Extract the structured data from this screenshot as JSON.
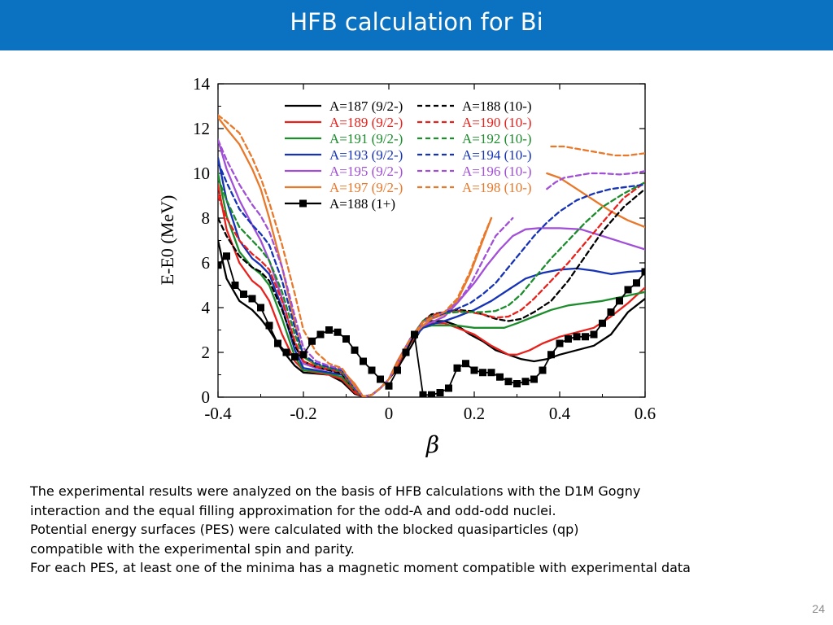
{
  "slide": {
    "title": "HFB calculation for Bi",
    "page_number": "24",
    "colors": {
      "title_bar": "#0b72c1"
    },
    "body_lines": [
      "The experimental results were analyzed on the basis of HFB calculations with the D1M Gogny",
      "interaction and the equal filling approximation for the odd-A and odd-odd nuclei.",
      "Potential energy surfaces (PES) were calculated with the blocked quasiparticles (qp)",
      "compatible with the experimental spin and parity.",
      "For each PES, at least one of the minima has a magnetic moment compatible with experimental data"
    ]
  },
  "chart_data": {
    "type": "line",
    "xlabel": "β",
    "ylabel": "E-E0 (MeV)",
    "xlim": [
      -0.4,
      0.6
    ],
    "ylim": [
      0,
      14
    ],
    "x_ticks": [
      "-0.4",
      "-0.2",
      "0",
      "0.2",
      "0.4",
      "0.6"
    ],
    "y_ticks": [
      "0",
      "2",
      "4",
      "6",
      "8",
      "10",
      "12",
      "14"
    ],
    "legend_position": "top",
    "series": [
      {
        "name": "A=187 (9/2-)",
        "color": "#000000",
        "dash": "solid",
        "x": [
          -0.4,
          -0.38,
          -0.35,
          -0.32,
          -0.3,
          -0.28,
          -0.25,
          -0.22,
          -0.2,
          -0.17,
          -0.14,
          -0.11,
          -0.08,
          -0.06,
          -0.04,
          -0.02,
          0,
          0.02,
          0.05,
          0.08,
          0.1,
          0.13,
          0.16,
          0.19,
          0.22,
          0.25,
          0.28,
          0.31,
          0.34,
          0.37,
          0.4,
          0.44,
          0.48,
          0.52,
          0.56,
          0.6
        ],
        "y": [
          7,
          5.3,
          4.3,
          3.9,
          3.5,
          3,
          2.1,
          1.4,
          1.1,
          1.05,
          1,
          0.7,
          0.15,
          0.02,
          0.1,
          0.4,
          0.8,
          1.3,
          2.2,
          3.2,
          3.4,
          3.4,
          3.2,
          2.8,
          2.5,
          2.1,
          1.9,
          1.7,
          1.6,
          1.7,
          1.9,
          2.1,
          2.3,
          2.8,
          3.8,
          4.4
        ]
      },
      {
        "name": "A=189 (9/2-)",
        "color": "#e8211c",
        "dash": "solid",
        "x": [
          -0.4,
          -0.38,
          -0.35,
          -0.32,
          -0.3,
          -0.28,
          -0.25,
          -0.22,
          -0.2,
          -0.17,
          -0.14,
          -0.11,
          -0.08,
          -0.06,
          -0.04,
          -0.02,
          0,
          0.02,
          0.05,
          0.08,
          0.1,
          0.13,
          0.16,
          0.2,
          0.24,
          0.28,
          0.3,
          0.33,
          0.36,
          0.4,
          0.44,
          0.48,
          0.52,
          0.56,
          0.6
        ],
        "y": [
          9.5,
          7.5,
          6,
          5.2,
          4.9,
          4.3,
          2.8,
          1.6,
          1.2,
          1.1,
          1,
          0.8,
          0.2,
          0.02,
          0.1,
          0.4,
          0.8,
          1.4,
          2.4,
          3.2,
          3.3,
          3.3,
          3.1,
          2.8,
          2.3,
          1.9,
          1.9,
          2.1,
          2.4,
          2.7,
          2.9,
          3.1,
          3.6,
          4.2,
          4.9
        ]
      },
      {
        "name": "A=191 (9/2-)",
        "color": "#1c8c2c",
        "dash": "solid",
        "x": [
          -0.4,
          -0.38,
          -0.35,
          -0.32,
          -0.3,
          -0.28,
          -0.25,
          -0.22,
          -0.2,
          -0.17,
          -0.14,
          -0.11,
          -0.08,
          -0.06,
          -0.04,
          -0.02,
          0,
          0.02,
          0.05,
          0.08,
          0.1,
          0.13,
          0.16,
          0.2,
          0.24,
          0.27,
          0.3,
          0.34,
          0.38,
          0.42,
          0.46,
          0.5,
          0.55,
          0.6
        ],
        "y": [
          10,
          8.1,
          6.5,
          5.8,
          5.5,
          5,
          3.5,
          1.8,
          1.2,
          1.15,
          1.05,
          0.9,
          0.3,
          0.02,
          0.1,
          0.4,
          0.8,
          1.5,
          2.5,
          3.1,
          3.2,
          3.2,
          3.2,
          3.1,
          3.1,
          3.1,
          3.3,
          3.6,
          3.9,
          4.1,
          4.2,
          4.3,
          4.5,
          4.7
        ]
      },
      {
        "name": "A=193 (9/2-)",
        "color": "#1633b5",
        "dash": "solid",
        "x": [
          -0.4,
          -0.38,
          -0.35,
          -0.32,
          -0.3,
          -0.28,
          -0.25,
          -0.22,
          -0.2,
          -0.17,
          -0.14,
          -0.11,
          -0.08,
          -0.06,
          -0.04,
          -0.02,
          0,
          0.02,
          0.05,
          0.08,
          0.1,
          0.13,
          0.16,
          0.2,
          0.24,
          0.28,
          0.32,
          0.36,
          0.4,
          0.44,
          0.48,
          0.52,
          0.56,
          0.6
        ],
        "y": [
          10.7,
          8.8,
          7,
          6.2,
          5.9,
          5.5,
          4,
          2.1,
          1.3,
          1.2,
          1.1,
          1,
          0.4,
          0.02,
          0.1,
          0.4,
          0.8,
          1.5,
          2.5,
          3.1,
          3.25,
          3.4,
          3.6,
          3.9,
          4.3,
          4.8,
          5.3,
          5.55,
          5.7,
          5.75,
          5.65,
          5.5,
          5.6,
          5.65
        ]
      },
      {
        "name": "A=195 (9/2-)",
        "color": "#a14fd6",
        "dash": "solid",
        "x": [
          -0.4,
          -0.38,
          -0.35,
          -0.32,
          -0.3,
          -0.28,
          -0.25,
          -0.22,
          -0.2,
          -0.17,
          -0.14,
          -0.11,
          -0.08,
          -0.06,
          -0.04,
          -0.02,
          0,
          0.02,
          0.05,
          0.08,
          0.1,
          0.13,
          0.16,
          0.2,
          0.23,
          0.26,
          0.29,
          0.32,
          0.35,
          0.4,
          0.45,
          0.5,
          0.55,
          0.6
        ],
        "y": [
          11.5,
          10.2,
          8.8,
          7.7,
          7,
          6.1,
          4.4,
          2.4,
          1.5,
          1.3,
          1.2,
          1.1,
          0.5,
          0.02,
          0.1,
          0.4,
          0.8,
          1.6,
          2.6,
          3.2,
          3.35,
          3.6,
          4.2,
          5.1,
          5.9,
          6.6,
          7.2,
          7.5,
          7.55,
          7.55,
          7.5,
          7.2,
          6.9,
          6.6
        ]
      },
      {
        "name": "A=197 (9/2-)",
        "color": "#e8782a",
        "dash": "solid",
        "x": [
          -0.4,
          -0.38,
          -0.35,
          -0.32,
          -0.3,
          -0.28,
          -0.25,
          -0.22,
          -0.2,
          -0.17,
          -0.14,
          -0.11,
          -0.08,
          -0.06,
          -0.04,
          -0.02,
          0,
          0.02,
          0.05,
          0.08,
          0.1,
          0.13,
          0.16,
          0.19,
          0.22,
          0.24
        ],
        "y": [
          12.5,
          12,
          11.3,
          10.2,
          9.3,
          8,
          5.8,
          3.3,
          1.8,
          1.4,
          1.3,
          1.2,
          0.6,
          0.02,
          0.1,
          0.4,
          0.8,
          1.6,
          2.6,
          3.2,
          3.5,
          3.7,
          4.3,
          5.5,
          7,
          8
        ]
      },
      {
        "name": "A=197 (9/2-)",
        "color": "#e8782a",
        "dash": "solid",
        "segment": "high-branch",
        "x": [
          0.37,
          0.4,
          0.44,
          0.48,
          0.52,
          0.56,
          0.6
        ],
        "y": [
          10,
          9.8,
          9.3,
          8.8,
          8.3,
          7.9,
          7.6
        ]
      },
      {
        "name": "A=188 (10-)",
        "color": "#000000",
        "dash": "dashed",
        "x": [
          -0.4,
          -0.38,
          -0.35,
          -0.32,
          -0.3,
          -0.28,
          -0.25,
          -0.22,
          -0.2,
          -0.17,
          -0.14,
          -0.11,
          -0.08,
          -0.06,
          -0.04,
          -0.02,
          0,
          0.02,
          0.05,
          0.08,
          0.1,
          0.13,
          0.16,
          0.19,
          0.22,
          0.25,
          0.28,
          0.31,
          0.34,
          0.38,
          0.42,
          0.46,
          0.5,
          0.55,
          0.6
        ],
        "y": [
          8,
          7.2,
          6.3,
          5.8,
          5.6,
          5.2,
          3.9,
          2.3,
          1.6,
          1.35,
          1.2,
          1.05,
          0.3,
          0.02,
          0.1,
          0.4,
          0.8,
          1.5,
          2.6,
          3.4,
          3.7,
          3.8,
          3.9,
          3.85,
          3.7,
          3.5,
          3.4,
          3.5,
          3.8,
          4.3,
          5.2,
          6.3,
          7.4,
          8.5,
          9.3
        ]
      },
      {
        "name": "A=190 (10-)",
        "color": "#e8211c",
        "dash": "dashed",
        "x": [
          -0.4,
          -0.38,
          -0.35,
          -0.32,
          -0.3,
          -0.28,
          -0.25,
          -0.22,
          -0.2,
          -0.17,
          -0.14,
          -0.11,
          -0.08,
          -0.06,
          -0.04,
          -0.02,
          0,
          0.02,
          0.05,
          0.08,
          0.1,
          0.13,
          0.16,
          0.19,
          0.22,
          0.25,
          0.28,
          0.31,
          0.34,
          0.38,
          0.42,
          0.46,
          0.5,
          0.55,
          0.6
        ],
        "y": [
          9,
          8,
          7,
          6.4,
          6.1,
          5.7,
          4.3,
          2.5,
          1.6,
          1.35,
          1.25,
          1.1,
          0.3,
          0.02,
          0.1,
          0.4,
          0.8,
          1.5,
          2.6,
          3.4,
          3.65,
          3.8,
          3.85,
          3.8,
          3.7,
          3.55,
          3.6,
          3.9,
          4.4,
          5.2,
          6,
          6.9,
          7.8,
          8.9,
          9.6
        ]
      },
      {
        "name": "A=192 (10-)",
        "color": "#1c8c2c",
        "dash": "dashed",
        "x": [
          -0.4,
          -0.38,
          -0.35,
          -0.32,
          -0.3,
          -0.28,
          -0.25,
          -0.22,
          -0.2,
          -0.17,
          -0.14,
          -0.11,
          -0.08,
          -0.06,
          -0.04,
          -0.02,
          0,
          0.02,
          0.05,
          0.08,
          0.1,
          0.13,
          0.16,
          0.19,
          0.22,
          0.25,
          0.28,
          0.31,
          0.34,
          0.38,
          0.42,
          0.46,
          0.5,
          0.55,
          0.6
        ],
        "y": [
          9.8,
          8.8,
          7.6,
          7,
          6.6,
          6.1,
          4.7,
          2.8,
          1.8,
          1.45,
          1.3,
          1.15,
          0.35,
          0.02,
          0.1,
          0.4,
          0.8,
          1.5,
          2.6,
          3.4,
          3.6,
          3.75,
          3.8,
          3.8,
          3.8,
          3.85,
          4.1,
          4.6,
          5.3,
          6.2,
          7,
          7.8,
          8.5,
          9.1,
          9.6
        ]
      },
      {
        "name": "A=194 (10-)",
        "color": "#1633b5",
        "dash": "dashed",
        "x": [
          -0.4,
          -0.38,
          -0.35,
          -0.32,
          -0.3,
          -0.28,
          -0.25,
          -0.22,
          -0.2,
          -0.17,
          -0.14,
          -0.11,
          -0.08,
          -0.06,
          -0.04,
          -0.02,
          0,
          0.02,
          0.05,
          0.08,
          0.1,
          0.13,
          0.16,
          0.19,
          0.22,
          0.25,
          0.28,
          0.31,
          0.34,
          0.37,
          0.4,
          0.44,
          0.48,
          0.52,
          0.56,
          0.6
        ],
        "y": [
          10.5,
          9.6,
          8.4,
          7.7,
          7.3,
          6.8,
          5.2,
          3.1,
          1.9,
          1.5,
          1.35,
          1.2,
          0.4,
          0.02,
          0.1,
          0.4,
          0.8,
          1.5,
          2.6,
          3.35,
          3.55,
          3.75,
          3.95,
          4.2,
          4.6,
          5.1,
          5.8,
          6.5,
          7.2,
          7.8,
          8.3,
          8.8,
          9.1,
          9.3,
          9.4,
          9.5
        ]
      },
      {
        "name": "A=196 (10-)",
        "color": "#a14fd6",
        "dash": "dashed",
        "x": [
          -0.4,
          -0.38,
          -0.35,
          -0.32,
          -0.3,
          -0.28,
          -0.25,
          -0.22,
          -0.2,
          -0.17,
          -0.14,
          -0.11,
          -0.08,
          -0.06,
          -0.04,
          -0.02,
          0,
          0.02,
          0.05,
          0.08,
          0.1,
          0.13,
          0.16,
          0.19,
          0.22,
          0.25,
          0.29
        ],
        "y": [
          11.5,
          10.6,
          9.5,
          8.6,
          8.1,
          7.4,
          5.8,
          3.6,
          2.2,
          1.6,
          1.4,
          1.25,
          0.45,
          0.02,
          0.1,
          0.4,
          0.8,
          1.5,
          2.6,
          3.35,
          3.55,
          3.8,
          4.2,
          5,
          6.1,
          7.2,
          8
        ]
      },
      {
        "name": "A=196 (10-)",
        "color": "#a14fd6",
        "dash": "dashed",
        "segment": "high-branch",
        "x": [
          0.37,
          0.39,
          0.41,
          0.44,
          0.47,
          0.5,
          0.54,
          0.57,
          0.6
        ],
        "y": [
          9.3,
          9.6,
          9.8,
          9.9,
          10,
          10,
          9.95,
          10,
          10.1
        ]
      },
      {
        "name": "A=198 (10-)",
        "color": "#e8782a",
        "dash": "dashed",
        "x": [
          -0.4,
          -0.38,
          -0.35,
          -0.32,
          -0.3,
          -0.28,
          -0.25,
          -0.22,
          -0.2,
          -0.17,
          -0.14,
          -0.11,
          -0.08,
          -0.06,
          -0.04,
          -0.02,
          0,
          0.02,
          0.05,
          0.08,
          0.1,
          0.13,
          0.16,
          0.19,
          0.22,
          0.24
        ],
        "y": [
          12.6,
          12.3,
          11.8,
          10.7,
          9.8,
          8.7,
          6.8,
          4.6,
          3,
          2,
          1.5,
          1.3,
          0.5,
          0.02,
          0.1,
          0.4,
          0.8,
          1.5,
          2.6,
          3.35,
          3.55,
          3.8,
          4.4,
          5.6,
          7.1,
          8
        ]
      },
      {
        "name": "A=198 (10-)",
        "color": "#e8782a",
        "dash": "dashed",
        "segment": "high-branch",
        "x": [
          0.38,
          0.41,
          0.44,
          0.47,
          0.5,
          0.53,
          0.56,
          0.6
        ],
        "y": [
          11.2,
          11.2,
          11.1,
          11,
          10.9,
          10.8,
          10.8,
          10.9
        ]
      },
      {
        "name": "A=188 (1+)",
        "color": "#000000",
        "dash": "solid",
        "marker": "square",
        "x": [
          -0.4,
          -0.38,
          -0.36,
          -0.34,
          -0.32,
          -0.3,
          -0.28,
          -0.26,
          -0.24,
          -0.22,
          -0.2,
          -0.18,
          -0.16,
          -0.14,
          -0.12,
          -0.1,
          -0.08,
          -0.06,
          -0.04,
          -0.02,
          0,
          0.02,
          0.04,
          0.06,
          0.08,
          0.1,
          0.12,
          0.14,
          0.16,
          0.18,
          0.2,
          0.22,
          0.24,
          0.26,
          0.28,
          0.3,
          0.32,
          0.34,
          0.36,
          0.38,
          0.4,
          0.42,
          0.44,
          0.46,
          0.48,
          0.5,
          0.52,
          0.54,
          0.56,
          0.58,
          0.6
        ],
        "y": [
          5.9,
          6.3,
          5,
          4.6,
          4.4,
          4,
          3.2,
          2.4,
          2,
          1.8,
          1.9,
          2.5,
          2.8,
          3,
          2.9,
          2.6,
          2.1,
          1.6,
          1.2,
          0.8,
          0.5,
          1.2,
          2,
          2.8,
          0.1,
          0.1,
          0.2,
          0.4,
          1.3,
          1.5,
          1.2,
          1.1,
          1.1,
          0.9,
          0.7,
          0.6,
          0.7,
          0.8,
          1.2,
          1.9,
          2.4,
          2.6,
          2.7,
          2.7,
          2.8,
          3.3,
          3.8,
          4.3,
          4.8,
          5.1,
          5.6
        ]
      }
    ]
  }
}
